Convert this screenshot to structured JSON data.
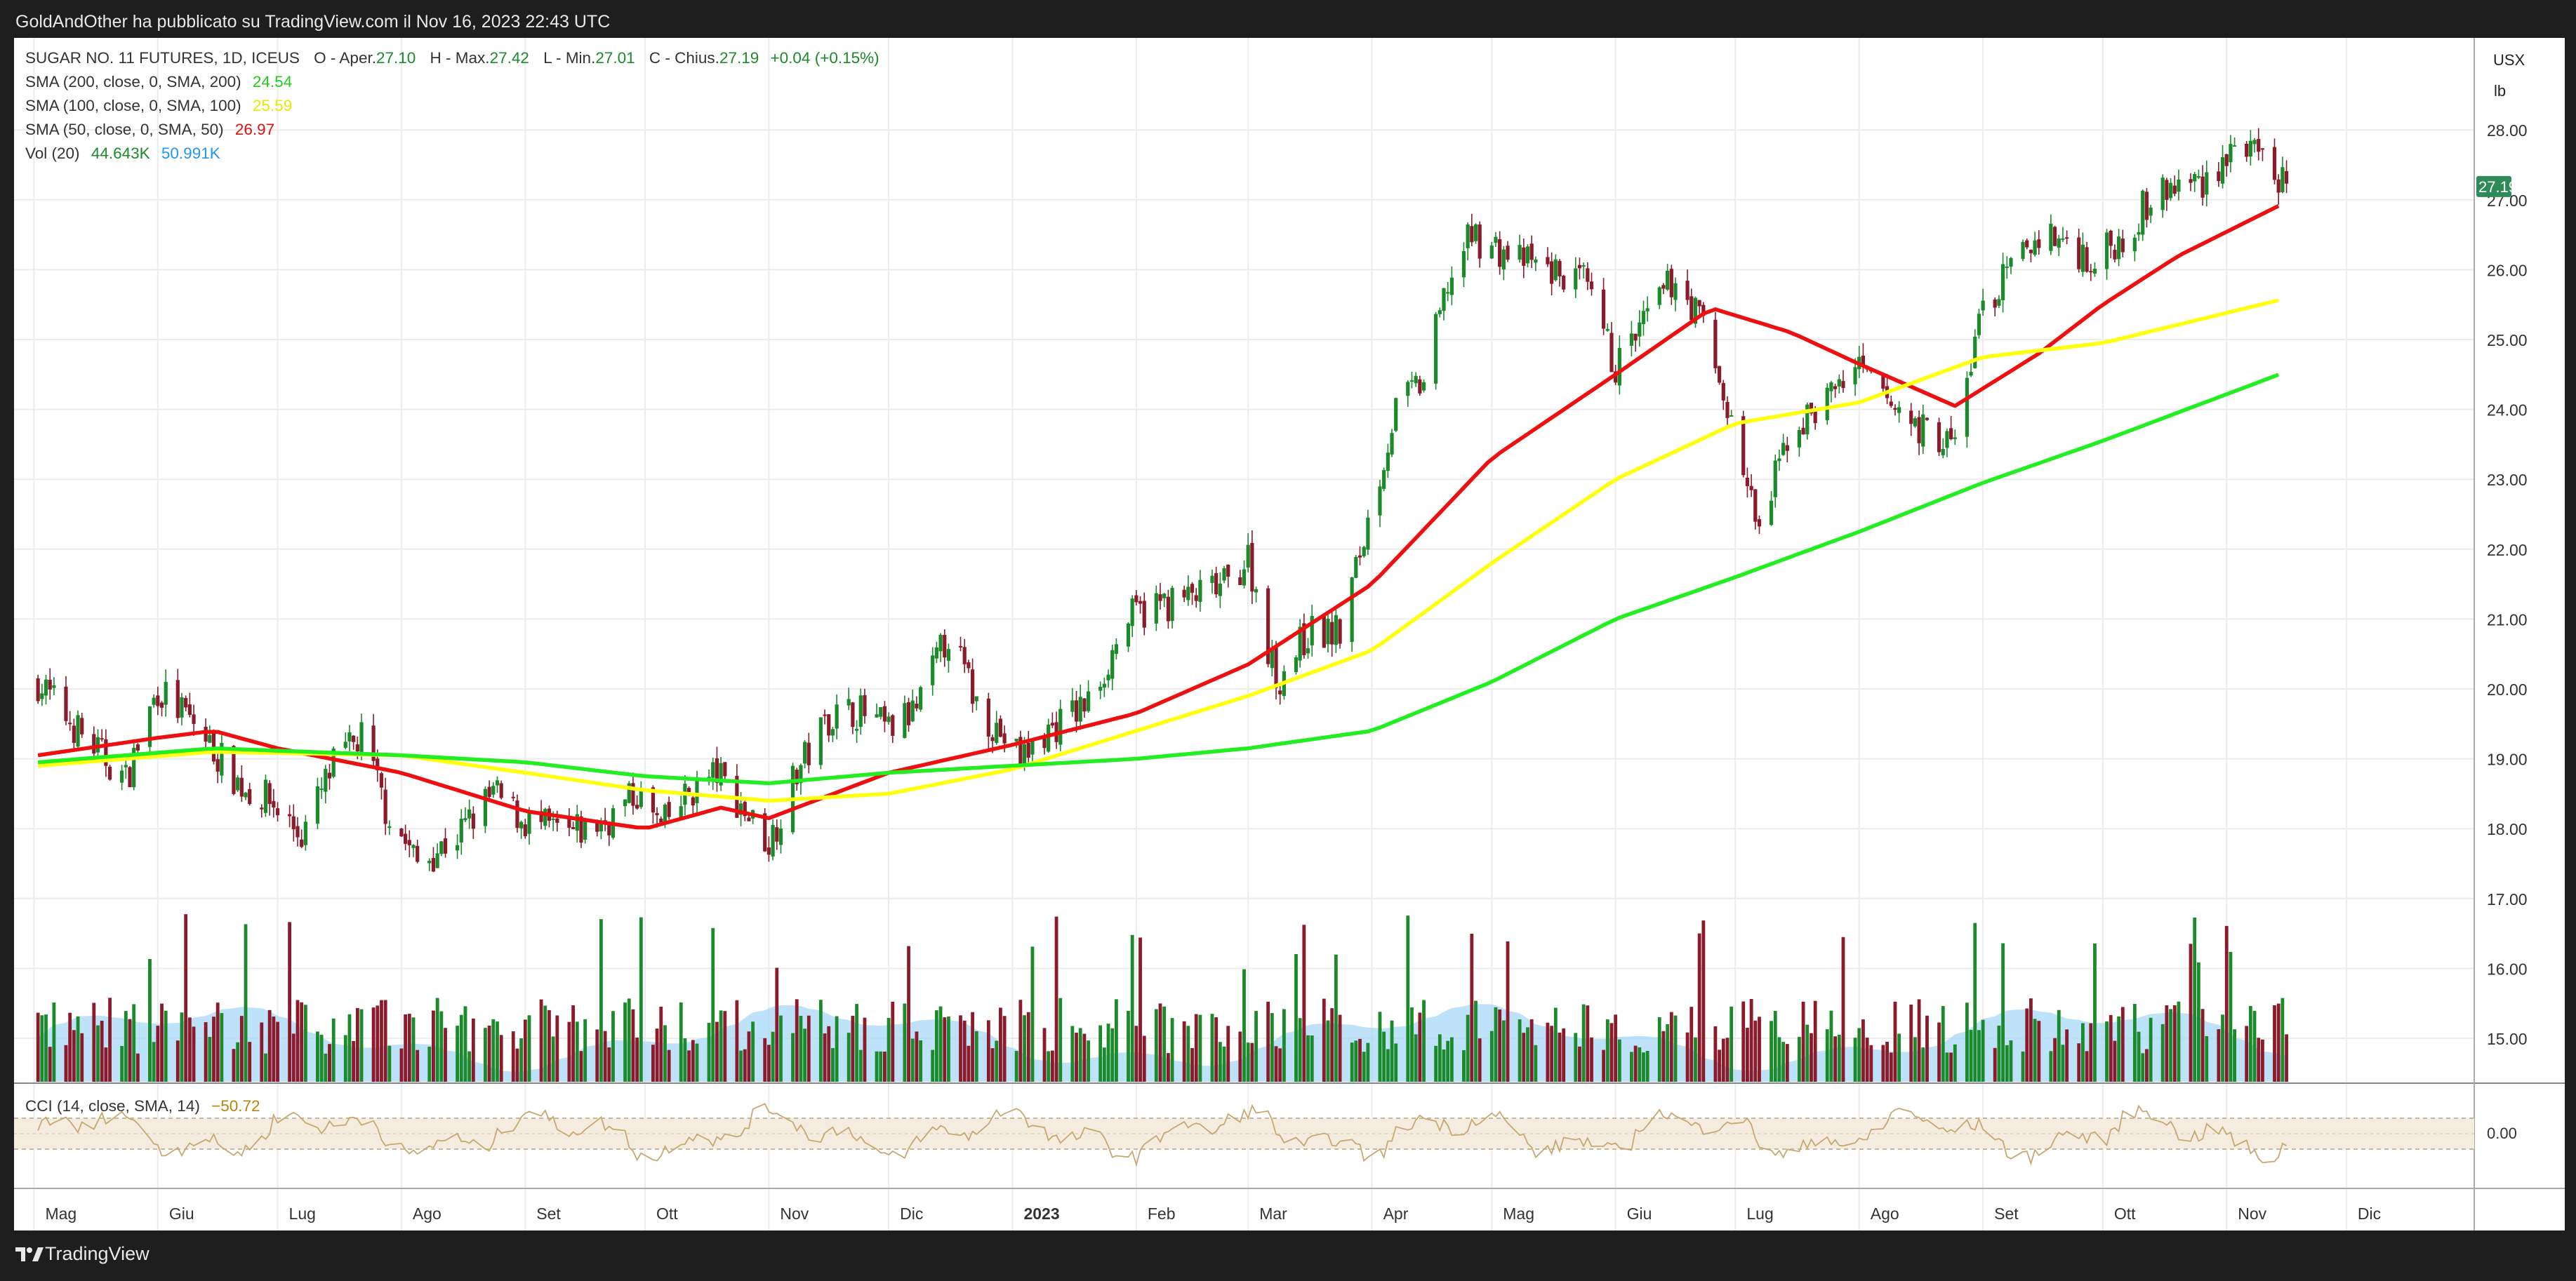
{
  "header": {
    "publish_line": "GoldAndOther ha pubblicato su TradingView.com il Nov 16, 2023 22:43 UTC"
  },
  "footer": {
    "brand": "TradingView"
  },
  "legend": {
    "symbol": "SUGAR NO. 11 FUTURES, 1D, ICEUS",
    "ohlc": [
      {
        "label": "O - Aper.",
        "value": "27.10"
      },
      {
        "label": "H - Max.",
        "value": "27.42"
      },
      {
        "label": "L - Min.",
        "value": "27.01"
      },
      {
        "label": "C - Chius.",
        "value": "27.19"
      }
    ],
    "change": "+0.04 (+0.15%)",
    "indicators": [
      {
        "label": "SMA (200, close, 0, SMA, 200)",
        "value": "24.54",
        "color": "#2ecc2e"
      },
      {
        "label": "SMA (100, close, 0, SMA, 100)",
        "value": "25.59",
        "color": "#f4f400"
      },
      {
        "label": "SMA (50, close, 0, SMA, 50)",
        "value": "26.97",
        "color": "#e01010"
      }
    ],
    "volume": {
      "label": "Vol (20)",
      "value": "44.643K",
      "avg": "50.991K"
    },
    "cci": {
      "label": "CCI (14, close, SMA, 14)",
      "value": "−50.72"
    }
  },
  "colors": {
    "up": "#1a8a2a",
    "down": "#8b1a2a",
    "sma200": "#22ee22",
    "sma100": "#ffff10",
    "sma50": "#ee1010",
    "vol_avg": "#a8d8f8",
    "cci_line": "#c8a870",
    "price_tag": "#2e8b57"
  },
  "chart_data": {
    "type": "candlestick",
    "currency": "USX",
    "unit": "lb",
    "last_price": "27.19",
    "cci_level_label": "0.00",
    "y_ticks": [
      "28.00",
      "27.00",
      "26.00",
      "25.00",
      "24.00",
      "23.00",
      "22.00",
      "21.00",
      "20.00",
      "19.00",
      "18.00",
      "17.00",
      "16.00",
      "15.00"
    ],
    "x_ticks": [
      "Mag",
      "Giu",
      "Lug",
      "Ago",
      "Set",
      "Ott",
      "Nov",
      "Dic",
      "2023",
      "Feb",
      "Mar",
      "Apr",
      "Mag",
      "Giu",
      "Lug",
      "Ago",
      "Set",
      "Ott",
      "Nov",
      "Dic"
    ],
    "close_path": [
      [
        "2022-05-02",
        20.1
      ],
      [
        "2022-05-12",
        19.4
      ],
      [
        "2022-05-24",
        18.7
      ],
      [
        "2022-06-01",
        20.0
      ],
      [
        "2022-06-10",
        19.5
      ],
      [
        "2022-06-22",
        18.6
      ],
      [
        "2022-06-29",
        18.4
      ],
      [
        "2022-07-07",
        17.9
      ],
      [
        "2022-07-15",
        18.9
      ],
      [
        "2022-07-22",
        19.3
      ],
      [
        "2022-07-28",
        18.3
      ],
      [
        "2022-08-05",
        17.5
      ],
      [
        "2022-08-15",
        17.9
      ],
      [
        "2022-08-24",
        18.5
      ],
      [
        "2022-09-01",
        18.1
      ],
      [
        "2022-09-12",
        17.9
      ],
      [
        "2022-09-21",
        18.1
      ],
      [
        "2022-09-29",
        18.5
      ],
      [
        "2022-10-05",
        18.0
      ],
      [
        "2022-10-12",
        18.5
      ],
      [
        "2022-10-19",
        18.8
      ],
      [
        "2022-10-28",
        18.1
      ],
      [
        "2022-11-01",
        17.8
      ],
      [
        "2022-11-08",
        18.8
      ],
      [
        "2022-11-16",
        19.6
      ],
      [
        "2022-11-23",
        19.7
      ],
      [
        "2022-12-01",
        19.4
      ],
      [
        "2022-12-08",
        19.7
      ],
      [
        "2022-12-16",
        20.8
      ],
      [
        "2022-12-23",
        19.8
      ],
      [
        "2023-01-03",
        19.0
      ],
      [
        "2023-01-10",
        19.4
      ],
      [
        "2023-01-20",
        19.8
      ],
      [
        "2023-01-30",
        21.0
      ],
      [
        "2023-02-06",
        21.2
      ],
      [
        "2023-02-15",
        21.3
      ],
      [
        "2023-02-24",
        21.5
      ],
      [
        "2023-03-01",
        21.9
      ],
      [
        "2023-03-08",
        20.1
      ],
      [
        "2023-03-16",
        20.8
      ],
      [
        "2023-03-24",
        20.8
      ],
      [
        "2023-03-31",
        22.4
      ],
      [
        "2023-04-07",
        24.0
      ],
      [
        "2023-04-14",
        24.4
      ],
      [
        "2023-04-20",
        25.8
      ],
      [
        "2023-04-26",
        26.5
      ],
      [
        "2023-05-05",
        26.2
      ],
      [
        "2023-05-15",
        26.0
      ],
      [
        "2023-05-24",
        25.8
      ],
      [
        "2023-06-01",
        24.6
      ],
      [
        "2023-06-09",
        25.3
      ],
      [
        "2023-06-16",
        25.9
      ],
      [
        "2023-06-23",
        25.2
      ],
      [
        "2023-06-30",
        23.8
      ],
      [
        "2023-07-07",
        22.2
      ],
      [
        "2023-07-14",
        23.6
      ],
      [
        "2023-07-21",
        24.0
      ],
      [
        "2023-07-31",
        24.6
      ],
      [
        "2023-08-08",
        24.1
      ],
      [
        "2023-08-17",
        23.7
      ],
      [
        "2023-08-25",
        23.5
      ],
      [
        "2023-08-31",
        25.3
      ],
      [
        "2023-09-08",
        26.0
      ],
      [
        "2023-09-15",
        26.5
      ],
      [
        "2023-09-22",
        26.4
      ],
      [
        "2023-09-29",
        26.1
      ],
      [
        "2023-10-06",
        26.5
      ],
      [
        "2023-10-13",
        27.0
      ],
      [
        "2023-10-20",
        27.2
      ],
      [
        "2023-10-27",
        27.3
      ],
      [
        "2023-11-03",
        27.8
      ],
      [
        "2023-11-10",
        27.5
      ],
      [
        "2023-11-16",
        27.19
      ]
    ],
    "sma_paths": [
      {
        "name": "SMA (50, close, 0, SMA, 50)",
        "values": [
          [
            "2022-05-02",
            19.05
          ],
          [
            "2022-06-01",
            19.3
          ],
          [
            "2022-06-15",
            19.4
          ],
          [
            "2022-07-01",
            19.15
          ],
          [
            "2022-08-01",
            18.8
          ],
          [
            "2022-09-01",
            18.25
          ],
          [
            "2022-10-01",
            18.0
          ],
          [
            "2022-10-20",
            18.3
          ],
          [
            "2022-11-01",
            18.15
          ],
          [
            "2022-12-01",
            18.8
          ],
          [
            "2023-01-01",
            19.2
          ],
          [
            "2023-02-01",
            19.65
          ],
          [
            "2023-03-01",
            20.35
          ],
          [
            "2023-04-01",
            21.5
          ],
          [
            "2023-05-01",
            23.3
          ],
          [
            "2023-06-01",
            24.5
          ],
          [
            "2023-06-25",
            25.45
          ],
          [
            "2023-07-15",
            25.1
          ],
          [
            "2023-08-01",
            24.65
          ],
          [
            "2023-08-25",
            24.05
          ],
          [
            "2023-09-15",
            24.8
          ],
          [
            "2023-10-01",
            25.5
          ],
          [
            "2023-10-20",
            26.2
          ],
          [
            "2023-11-16",
            26.97
          ]
        ]
      },
      {
        "name": "SMA (100, close, 0, SMA, 100)",
        "values": [
          [
            "2022-05-02",
            18.9
          ],
          [
            "2022-06-15",
            19.1
          ],
          [
            "2022-08-01",
            19.05
          ],
          [
            "2022-09-01",
            18.8
          ],
          [
            "2022-10-01",
            18.55
          ],
          [
            "2022-11-01",
            18.4
          ],
          [
            "2022-12-01",
            18.5
          ],
          [
            "2023-01-01",
            18.85
          ],
          [
            "2023-02-01",
            19.4
          ],
          [
            "2023-03-01",
            19.9
          ],
          [
            "2023-04-01",
            20.55
          ],
          [
            "2023-05-01",
            21.8
          ],
          [
            "2023-06-01",
            23.0
          ],
          [
            "2023-07-01",
            23.8
          ],
          [
            "2023-08-01",
            24.1
          ],
          [
            "2023-09-01",
            24.75
          ],
          [
            "2023-10-01",
            24.95
          ],
          [
            "2023-11-16",
            25.59
          ]
        ]
      },
      {
        "name": "SMA (200, close, 0, SMA, 200)",
        "values": [
          [
            "2022-05-02",
            18.95
          ],
          [
            "2022-06-15",
            19.15
          ],
          [
            "2022-08-01",
            19.05
          ],
          [
            "2022-09-01",
            18.95
          ],
          [
            "2022-10-01",
            18.75
          ],
          [
            "2022-11-01",
            18.65
          ],
          [
            "2022-12-01",
            18.8
          ],
          [
            "2023-01-01",
            18.9
          ],
          [
            "2023-02-01",
            19.0
          ],
          [
            "2023-03-01",
            19.15
          ],
          [
            "2023-04-01",
            19.4
          ],
          [
            "2023-05-01",
            20.1
          ],
          [
            "2023-06-01",
            21.0
          ],
          [
            "2023-07-01",
            21.6
          ],
          [
            "2023-08-01",
            22.25
          ],
          [
            "2023-09-01",
            22.95
          ],
          [
            "2023-10-01",
            23.55
          ],
          [
            "2023-11-16",
            24.54
          ]
        ]
      }
    ]
  }
}
